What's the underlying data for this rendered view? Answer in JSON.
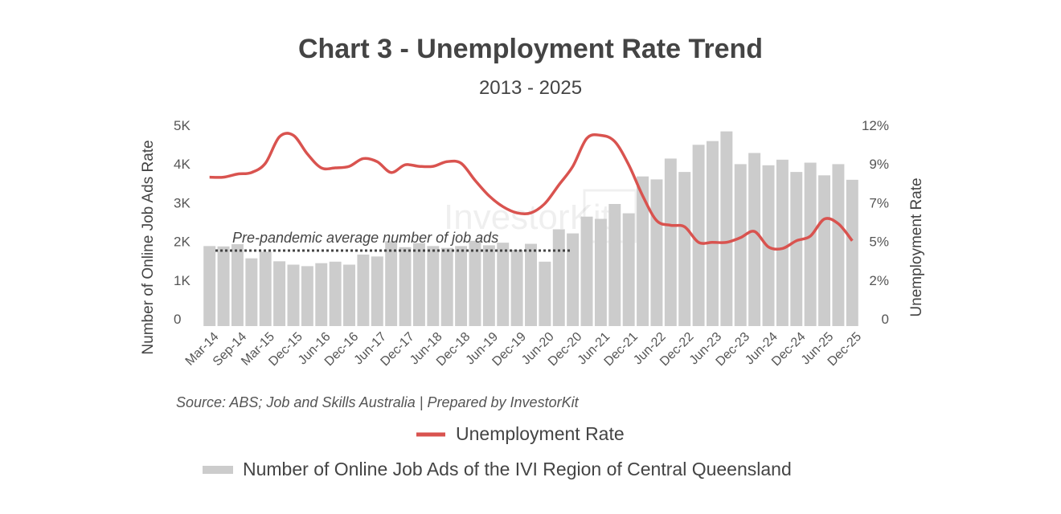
{
  "chart_data": {
    "type": "bar+line",
    "title": "Chart 3 - Unemployment Rate Trend",
    "subtitle": "2013 - 2025",
    "y_left_label": "Number of Online Job Ads Rate",
    "y_right_label": "Unemployment Rate",
    "y_left_ticks": [
      "0",
      "1K",
      "2K",
      "3K",
      "4K",
      "5K"
    ],
    "y_right_ticks": [
      "0",
      "2%",
      "5%",
      "7%",
      "9%",
      "12%"
    ],
    "y_left_range": [
      0,
      5200
    ],
    "y_right_range": [
      0,
      12.48
    ],
    "x_tick_labels": [
      "Mar-14",
      "Sep-14",
      "Mar-15",
      "Dec-15",
      "Jun-16",
      "Dec-16",
      "Jun-17",
      "Dec-17",
      "Jun-18",
      "Dec-18",
      "Jun-19",
      "Dec-19",
      "Jun-20",
      "Dec-20",
      "Jun-21",
      "Dec-21",
      "Jun-22",
      "Dec-22",
      "Jun-23",
      "Dec-23",
      "Jun-24",
      "Dec-24",
      "Jun-25",
      "Dec-25"
    ],
    "bars": {
      "name": "Number of Online Job Ads of the IVI Region of Central Queensland",
      "color": "#cccccc",
      "values": [
        2150,
        2140,
        2200,
        1820,
        2000,
        1740,
        1650,
        1610,
        1690,
        1730,
        1650,
        1920,
        1870,
        2280,
        2120,
        2230,
        2150,
        2100,
        2150,
        2290,
        2170,
        2240,
        2050,
        2210,
        1730,
        2600,
        2490,
        2940,
        2880,
        3280,
        3030,
        4020,
        3940,
        4500,
        4140,
        4870,
        4970,
        5230,
        4350,
        4650,
        4320,
        4470,
        4140,
        4390,
        4050,
        4350,
        3930
      ]
    },
    "line": {
      "name": "Unemployment Rate",
      "color": "#d9534f",
      "values": [
        9.6,
        9.6,
        9.8,
        9.9,
        10.5,
        12.2,
        12.3,
        11.1,
        10.2,
        10.2,
        10.3,
        10.8,
        10.6,
        9.9,
        10.4,
        10.3,
        10.3,
        10.6,
        10.5,
        9.4,
        8.4,
        7.7,
        7.3,
        7.3,
        7.9,
        9.1,
        10.3,
        12.1,
        12.3,
        11.9,
        10.4,
        8.4,
        6.8,
        6.5,
        6.4,
        5.4,
        5.4,
        5.4,
        5.7,
        6.1,
        5.1,
        5.0,
        5.5,
        5.8,
        6.9,
        6.6,
        5.5
      ]
    },
    "reference_line": {
      "label": "Pre-pandemic average number of job ads",
      "value": 2050,
      "style": "dotted"
    },
    "watermark": "InvestorKit",
    "source": "Source: ABS; Job and Skills Australia | Prepared by InvestorKit",
    "legend": [
      {
        "label": "Unemployment Rate",
        "color": "#d9534f",
        "kind": "line"
      },
      {
        "label": "Number of Online Job Ads of the IVI Region of Central Queensland",
        "color": "#cccccc",
        "kind": "bar"
      }
    ]
  }
}
